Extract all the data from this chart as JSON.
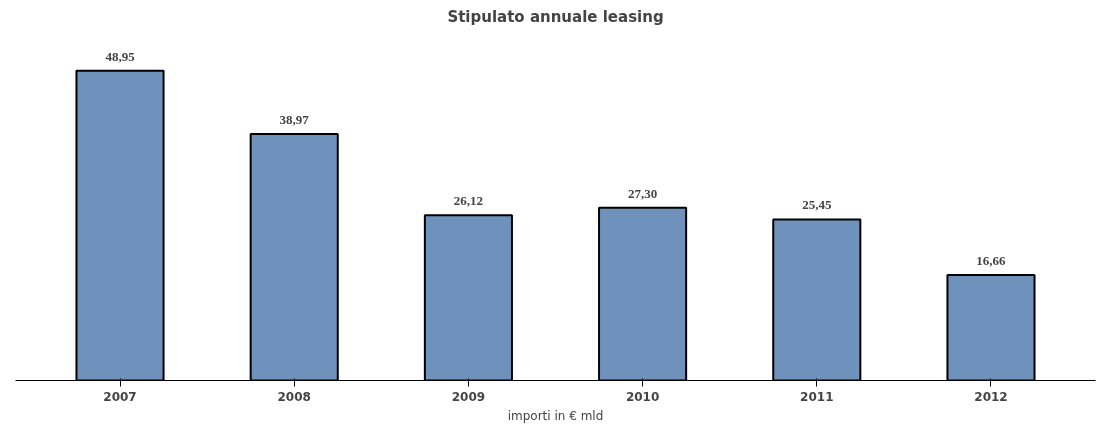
{
  "chart_data": {
    "type": "bar",
    "title": "Stipulato annuale leasing",
    "xlabel": "importi in € mld",
    "categories": [
      "2007",
      "2008",
      "2009",
      "2010",
      "2011",
      "2012"
    ],
    "values": [
      48.95,
      38.97,
      26.12,
      27.3,
      25.45,
      16.66
    ],
    "value_labels": [
      "48,95",
      "38,97",
      "26,12",
      "27,30",
      "25,45",
      "16,66"
    ],
    "color": "#6f92bd",
    "grid": false
  }
}
